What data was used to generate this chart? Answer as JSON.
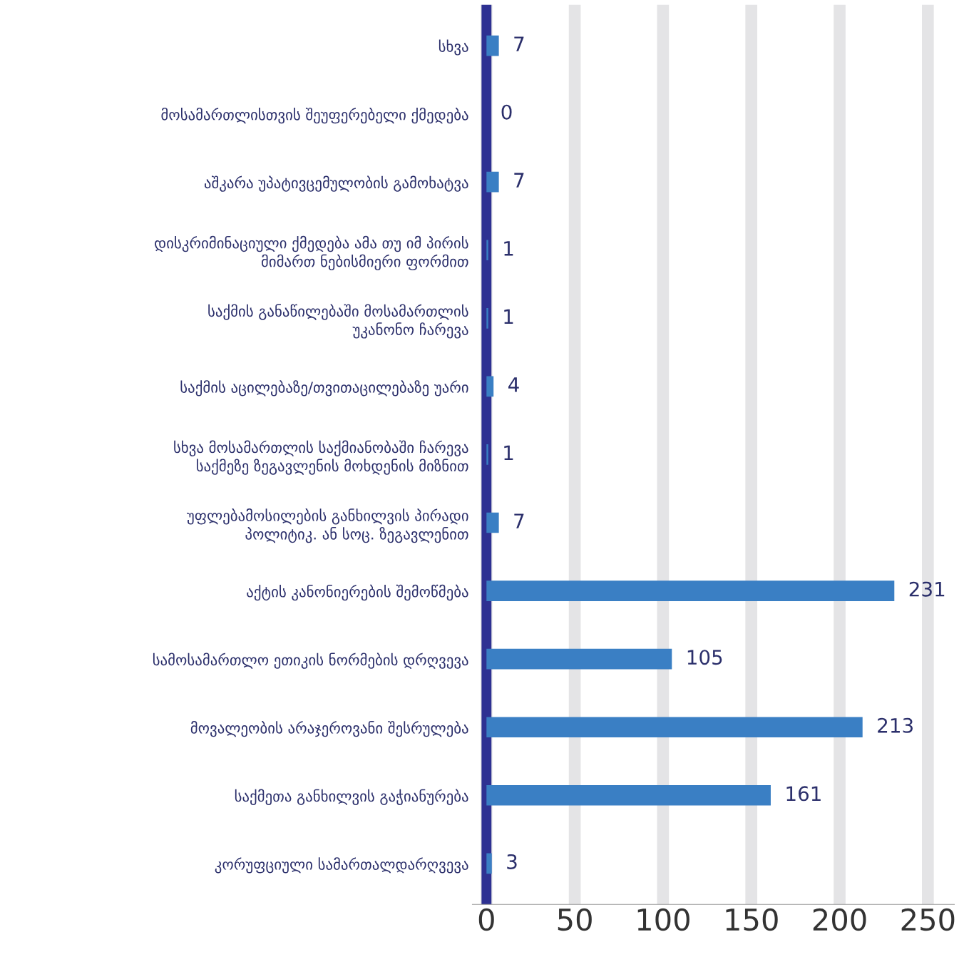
{
  "chart_data": {
    "type": "bar",
    "orientation": "horizontal",
    "categories": [
      "სხვა",
      "მოსამართლისთვის შეუფერებელი ქმედება",
      "აშკარა უპატივცემულობის გამოხატვა",
      "დისკრიმინაციული ქმედება ამა თუ იმ პირის\nმიმართ ნებისმიერი ფორმით",
      "საქმის განაწილებაში მოსამართლის\nუკანონო ჩარევა",
      "საქმის აცილებაზე/თვითაცილებაზე უარი",
      "სხვა მოსამართლის საქმიანობაში ჩარევა\nსაქმეზე ზეგავლენის მოხდენის მიზნით",
      "უფლებამოსილების განხილვის პირადი\nპოლიტიკ. ან სოც. ზეგავლენით",
      "აქტის კანონიერების შემოწმება",
      "სამოსამართლო ეთიკის ნორმების დრღვევა",
      "მოვალეობის არაჯეროვანი შესრულება",
      "საქმეთა განხილვის გაჭიანურება",
      "კორუფციული სამართალდარღვევა"
    ],
    "values": [
      7,
      0,
      7,
      1,
      1,
      4,
      1,
      7,
      231,
      105,
      213,
      161,
      3
    ],
    "color": "#3a7fc4",
    "data_labels": true,
    "xlim": [
      -8,
      265
    ],
    "xticks": [
      0,
      50,
      100,
      150,
      200,
      250
    ],
    "grid": "x",
    "legend": false
  }
}
